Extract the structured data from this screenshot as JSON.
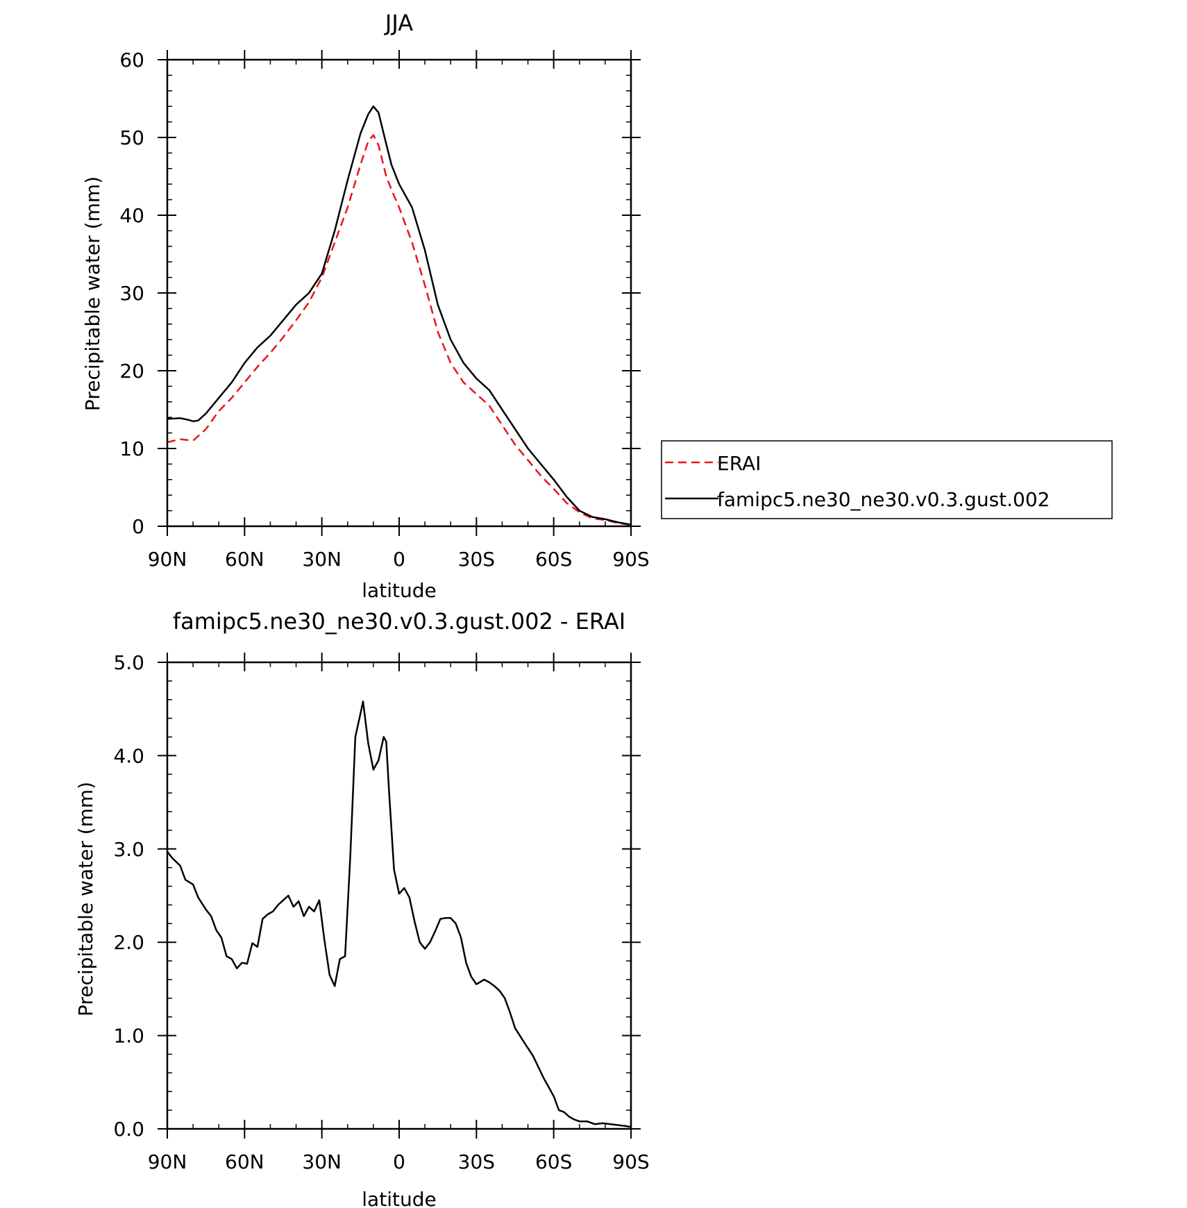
{
  "chart_data": [
    {
      "type": "line",
      "title": "JJA",
      "xlabel": "latitude",
      "ylabel": "Precipitable water (mm)",
      "xlim": [
        90,
        -90
      ],
      "ylim": [
        0,
        60
      ],
      "x_ticks": [
        90,
        60,
        30,
        0,
        -30,
        -60,
        -90
      ],
      "x_tick_labels": [
        "90N",
        "60N",
        "30N",
        "0",
        "30S",
        "60S",
        "90S"
      ],
      "y_ticks": [
        0,
        10,
        20,
        30,
        40,
        50,
        60
      ],
      "y_tick_labels": [
        "0",
        "10",
        "20",
        "30",
        "40",
        "50",
        "60"
      ],
      "legend_position": "right",
      "series": [
        {
          "name": "ERAI",
          "color": "#e8141c",
          "dash": "dashed",
          "x": [
            90,
            85,
            80,
            75,
            70,
            65,
            60,
            55,
            50,
            45,
            40,
            35,
            30,
            25,
            20,
            15,
            12,
            10,
            8,
            5,
            2,
            0,
            -5,
            -10,
            -15,
            -20,
            -25,
            -30,
            -35,
            -40,
            -45,
            -50,
            -55,
            -60,
            -65,
            -70,
            -75,
            -80,
            -85,
            -90
          ],
          "y": [
            10.8,
            11.2,
            11.0,
            12.5,
            14.8,
            16.5,
            18.5,
            20.5,
            22.3,
            24.3,
            26.5,
            28.8,
            32.0,
            36.5,
            41.0,
            46.5,
            49.5,
            50.3,
            49.0,
            45.0,
            42.5,
            41.0,
            36.5,
            31.0,
            25.0,
            21.0,
            18.5,
            17.0,
            15.5,
            13.0,
            10.5,
            8.5,
            6.5,
            4.8,
            3.0,
            1.8,
            1.0,
            0.8,
            0.4,
            0.2
          ]
        },
        {
          "name": "famipc5.ne30_ne30.v0.3.gust.002",
          "color": "#000000",
          "dash": "solid",
          "x": [
            90,
            85,
            82,
            80,
            78,
            75,
            70,
            65,
            60,
            55,
            50,
            45,
            40,
            35,
            30,
            25,
            20,
            15,
            12,
            10,
            8,
            6,
            3,
            0,
            -5,
            -10,
            -15,
            -20,
            -25,
            -30,
            -35,
            -40,
            -45,
            -50,
            -55,
            -60,
            -65,
            -70,
            -75,
            -80,
            -85,
            -90
          ],
          "y": [
            13.8,
            13.9,
            13.7,
            13.5,
            13.6,
            14.5,
            16.5,
            18.5,
            21.0,
            23.0,
            24.5,
            26.5,
            28.5,
            30.0,
            32.5,
            38.0,
            44.5,
            50.5,
            53.0,
            54.0,
            53.2,
            50.5,
            46.5,
            44.0,
            41.0,
            35.5,
            28.5,
            24.0,
            21.0,
            19.0,
            17.5,
            15.0,
            12.5,
            10.0,
            8.0,
            6.0,
            3.8,
            2.0,
            1.2,
            0.9,
            0.5,
            0.2
          ]
        }
      ]
    },
    {
      "type": "line",
      "title": "famipc5.ne30_ne30.v0.3.gust.002 - ERAI",
      "xlabel": "latitude",
      "ylabel": "Precipitable water (mm)",
      "xlim": [
        90,
        -90
      ],
      "ylim": [
        0,
        5
      ],
      "x_ticks": [
        90,
        60,
        30,
        0,
        -30,
        -60,
        -90
      ],
      "x_tick_labels": [
        "90N",
        "60N",
        "30N",
        "0",
        "30S",
        "60S",
        "90S"
      ],
      "y_ticks": [
        0,
        1,
        2,
        3,
        4,
        5
      ],
      "y_tick_labels": [
        "0.0",
        "1.0",
        "2.0",
        "3.0",
        "4.0",
        "5.0"
      ],
      "series": [
        {
          "color": "#000000",
          "dash": "solid",
          "x": [
            90,
            88,
            85,
            83,
            80,
            78,
            75,
            73,
            71,
            69,
            67,
            65,
            63,
            61,
            59,
            57,
            55,
            53,
            51,
            49,
            47,
            45,
            43,
            41,
            39,
            37,
            35,
            33,
            31,
            29,
            27,
            25,
            23,
            21,
            19,
            17,
            15,
            14,
            12,
            10,
            8,
            6,
            5,
            4,
            2,
            0,
            -2,
            -4,
            -6,
            -8,
            -10,
            -12,
            -14,
            -16,
            -18,
            -20,
            -22,
            -24,
            -26,
            -28,
            -30,
            -33,
            -35,
            -37,
            -39,
            -41,
            -43,
            -45,
            -48,
            -52,
            -56,
            -60,
            -62,
            -64,
            -66,
            -68,
            -70,
            -73,
            -76,
            -79,
            -82,
            -85,
            -88,
            -90
          ],
          "y": [
            2.97,
            2.9,
            2.82,
            2.67,
            2.62,
            2.48,
            2.35,
            2.28,
            2.13,
            2.05,
            1.85,
            1.82,
            1.72,
            1.78,
            1.77,
            1.99,
            1.95,
            2.25,
            2.3,
            2.33,
            2.4,
            2.45,
            2.5,
            2.38,
            2.44,
            2.28,
            2.38,
            2.33,
            2.45,
            2.02,
            1.65,
            1.53,
            1.82,
            1.85,
            2.9,
            4.2,
            4.45,
            4.58,
            4.13,
            3.85,
            3.95,
            4.2,
            4.15,
            3.65,
            2.78,
            2.52,
            2.58,
            2.48,
            2.22,
            2.0,
            1.93,
            2.0,
            2.12,
            2.25,
            2.26,
            2.26,
            2.2,
            2.05,
            1.78,
            1.63,
            1.55,
            1.6,
            1.57,
            1.53,
            1.48,
            1.4,
            1.25,
            1.08,
            0.95,
            0.78,
            0.55,
            0.35,
            0.2,
            0.18,
            0.13,
            0.1,
            0.08,
            0.08,
            0.05,
            0.06,
            0.05,
            0.04,
            0.03,
            0.02
          ]
        }
      ]
    }
  ]
}
